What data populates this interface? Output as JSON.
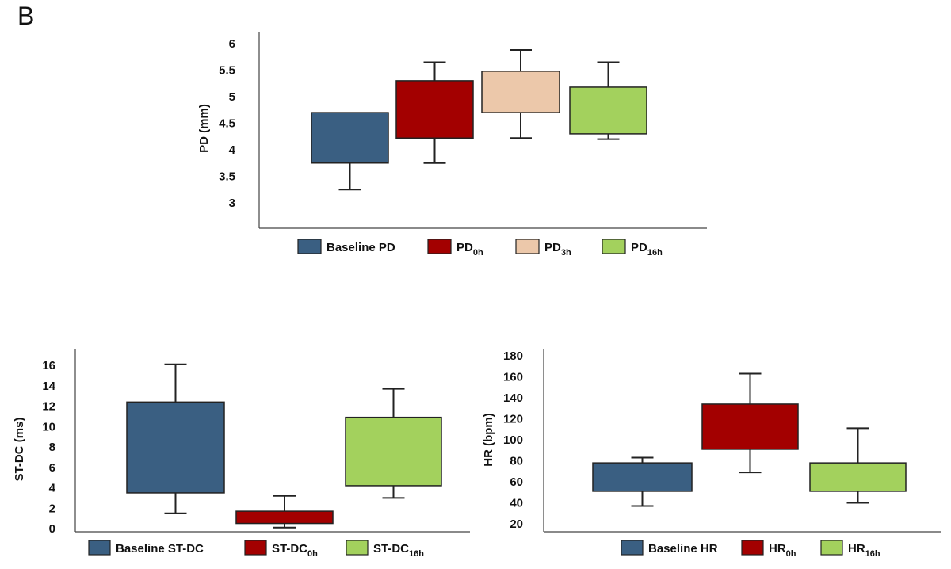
{
  "panel_label": "B",
  "chart_data": [
    {
      "type": "box",
      "id": "pd",
      "title": "",
      "ylabel": "PD (mm)",
      "ylim": [
        2.5,
        6.25
      ],
      "yticks": [
        "3",
        "3.5",
        "4",
        "4.5",
        "5",
        "5.5",
        "6"
      ],
      "grid": false,
      "legend_position": "bottom",
      "series": [
        {
          "name": "Baseline PD",
          "legend_main": "Baseline PD",
          "legend_sub": "",
          "color": "#3a5f82",
          "whisker_low": 3.25,
          "q1": 3.75,
          "q3": 4.7,
          "whisker_high": 4.7
        },
        {
          "name": "PD 0h",
          "legend_main": "PD",
          "legend_sub": "0h",
          "color": "#a30000",
          "whisker_low": 3.75,
          "q1": 4.22,
          "q3": 5.3,
          "whisker_high": 5.65
        },
        {
          "name": "PD 3h",
          "legend_main": "PD",
          "legend_sub": "3h",
          "color": "#ecc8aa",
          "whisker_low": 4.22,
          "q1": 4.7,
          "q3": 5.48,
          "whisker_high": 5.88
        },
        {
          "name": "PD 16h",
          "legend_main": "PD",
          "legend_sub": "16h",
          "color": "#a3d15d",
          "whisker_low": 4.2,
          "q1": 4.3,
          "q3": 5.18,
          "whisker_high": 5.65
        }
      ]
    },
    {
      "type": "box",
      "id": "stdc",
      "title": "",
      "ylabel": "ST-DC (ms)",
      "ylim": [
        0,
        17.5
      ],
      "yticks": [
        "0",
        "2",
        "4",
        "6",
        "8",
        "10",
        "12",
        "14",
        "16"
      ],
      "grid": false,
      "legend_position": "bottom",
      "series": [
        {
          "name": "Baseline ST-DC",
          "legend_main": "Baseline ST-DC",
          "legend_sub": "",
          "color": "#3a5f82",
          "whisker_low": 1.5,
          "q1": 3.5,
          "q3": 12.4,
          "whisker_high": 16.1
        },
        {
          "name": "ST-DC 0h",
          "legend_main": "ST-DC",
          "legend_sub": "0h",
          "color": "#a30000",
          "whisker_low": 0.1,
          "q1": 0.5,
          "q3": 1.7,
          "whisker_high": 3.2
        },
        {
          "name": "ST-DC 16h",
          "legend_main": "ST-DC",
          "legend_sub": "16h",
          "color": "#a3d15d",
          "whisker_low": 3.0,
          "q1": 4.2,
          "q3": 10.9,
          "whisker_high": 13.7
        }
      ]
    },
    {
      "type": "box",
      "id": "hr",
      "title": "",
      "ylabel": "HR (bpm)",
      "ylim": [
        20,
        190
      ],
      "yticks": [
        "20",
        "40",
        "60",
        "80",
        "100",
        "120",
        "140",
        "160",
        "180"
      ],
      "grid": false,
      "legend_position": "bottom",
      "series": [
        {
          "name": "Baseline HR",
          "legend_main": "Baseline HR",
          "legend_sub": "",
          "color": "#3a5f82",
          "whisker_low": 37,
          "q1": 51,
          "q3": 78,
          "whisker_high": 83
        },
        {
          "name": "HR 0h",
          "legend_main": "HR",
          "legend_sub": "0h",
          "color": "#a30000",
          "whisker_low": 69,
          "q1": 91,
          "q3": 134,
          "whisker_high": 163
        },
        {
          "name": "HR 16h",
          "legend_main": "HR",
          "legend_sub": "16h",
          "color": "#a3d15d",
          "whisker_low": 40,
          "q1": 51,
          "q3": 78,
          "whisker_high": 111
        }
      ]
    }
  ]
}
